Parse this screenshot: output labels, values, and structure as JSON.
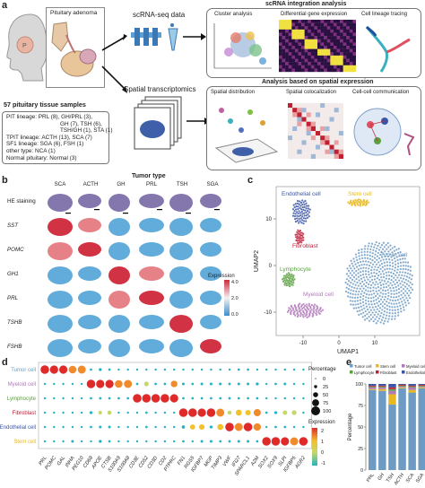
{
  "panels": {
    "a": "a",
    "b": "b",
    "c": "c",
    "d": "d",
    "e": "e"
  },
  "panel_a": {
    "pituitary_title": "Pituitary adenoma",
    "scrna_label": "scRNA-seq data",
    "spatial_label": "Spatial transcriptomics",
    "samples_title": "57 pituitary tissue samples",
    "samples_lines": [
      "PIT lineage: PRL (8), GH/PRL (3),",
      "GH (7), TSH (6),",
      "TSH/GH (1), STA (1)",
      "TPIT lineage: ACTH (13), SCA (7)",
      "SF1 lineage: SGA (6), FSH (1)",
      "other type: NCA (1)",
      "Normal pituitary: Normal (3)"
    ],
    "integration_title": "scRNA integration analysis",
    "cluster_label": "Cluster analysis",
    "deg_label": "Differential gene expression",
    "lineage_label": "Cell lineage tracing",
    "spatial_analysis_title": "Analysis based on spatial expression",
    "spatial_dist_label": "Spatial distribution",
    "spatial_coloc_label": "Spatial colocalization",
    "cell_comm_label": "Cell-cell communication"
  },
  "panel_b": {
    "title": "Tumor type",
    "columns": [
      "SCA",
      "ACTH",
      "GH",
      "PRL",
      "TSH",
      "SGA"
    ],
    "rows": [
      "HE staining",
      "SST",
      "POMC",
      "GH1",
      "PRL",
      "TSHB",
      "FSHB"
    ],
    "legend_title": "Expression",
    "legend_ticks": [
      "4.0",
      "2.0",
      "0.0"
    ]
  },
  "panel_c": {
    "xlabel": "UMAP1",
    "ylabel": "UMAP2",
    "xticks": [
      "-10",
      "0",
      "10"
    ],
    "yticks": [
      "10",
      "0",
      "-10"
    ],
    "clusters": [
      {
        "name": "Endothelial cell",
        "color": "#3b55a6"
      },
      {
        "name": "Stem cell",
        "color": "#e8b820"
      },
      {
        "name": "Fibroblast",
        "color": "#c0203a"
      },
      {
        "name": "Lymphocyte",
        "color": "#5aa040"
      },
      {
        "name": "Myeloid cell",
        "color": "#b07ab8"
      },
      {
        "name": "Tumor cell",
        "color": "#6d9bc3"
      }
    ]
  },
  "chart_data": [
    {
      "type": "scatter",
      "panel": "d",
      "description_kind": "dot plot",
      "rows": [
        "Tumor cell",
        "Myeloid cell",
        "Lymphocyte",
        "Fibroblast",
        "Endothelial cell",
        "Stem cell"
      ],
      "row_colors": [
        "#6d9bc3",
        "#b07ab8",
        "#5aa040",
        "#c0203a",
        "#3b55a6",
        "#e8b820"
      ],
      "genes": [
        "PRL",
        "POMC",
        "GAL",
        "INHA",
        "PEG10",
        "CD68",
        "APOE",
        "CTSB",
        "S100A9",
        "S100A8",
        "CD3E",
        "CD52",
        "CD3D",
        "CD2",
        "PTPRC",
        "FN1",
        "RGS5",
        "IGFBP7",
        "MGP",
        "TIMP3",
        "VWF",
        "IFI27",
        "SPARCL1",
        "A2M",
        "SOX2",
        "SOX9",
        "SLPI",
        "IGFBP5",
        "AGR2"
      ],
      "size_legend_title": "Percentage",
      "size_legend_values": [
        0,
        25,
        50,
        75,
        100
      ],
      "color_legend_title": "Expression",
      "color_legend_ticks": [
        "2",
        "1",
        "0",
        "-1"
      ],
      "values": [
        [
          1.8,
          1.6,
          1.6,
          1.4,
          1.5,
          -0.5,
          -0.3,
          -0.5,
          -0.6,
          -0.6,
          -0.6,
          -0.6,
          -0.6,
          -0.6,
          -0.6,
          -0.6,
          -0.6,
          -0.6,
          -0.6,
          -0.6,
          -0.6,
          -0.5,
          -0.5,
          -0.6,
          -0.6,
          -0.6,
          -0.6,
          -0.6,
          -0.6
        ],
        [
          -0.6,
          -0.6,
          -0.6,
          -0.6,
          -0.6,
          1.9,
          1.6,
          1.6,
          1.4,
          1.5,
          -0.5,
          0.3,
          -0.5,
          -0.5,
          1.0,
          -0.4,
          -0.5,
          -0.4,
          -0.4,
          -0.4,
          -0.5,
          -0.4,
          -0.4,
          -0.3,
          -0.6,
          -0.5,
          -0.4,
          -0.6,
          -0.6
        ],
        [
          -0.6,
          -0.6,
          -0.6,
          -0.6,
          -0.6,
          -0.5,
          -0.5,
          -0.5,
          -0.5,
          -0.5,
          1.9,
          1.8,
          1.9,
          1.8,
          1.6,
          -0.5,
          -0.5,
          -0.5,
          -0.5,
          -0.5,
          -0.5,
          -0.5,
          -0.5,
          -0.5,
          -0.6,
          -0.6,
          -0.6,
          -0.6,
          -0.6
        ],
        [
          -0.6,
          -0.6,
          -0.6,
          -0.6,
          -0.6,
          -0.3,
          -0.1,
          0.1,
          -0.6,
          -0.6,
          -0.6,
          -0.5,
          -0.6,
          -0.6,
          -0.6,
          1.9,
          1.7,
          1.6,
          1.9,
          1.5,
          0.1,
          0.8,
          0.6,
          1.2,
          -0.5,
          -0.3,
          0.2,
          0.3,
          -0.6
        ],
        [
          -0.6,
          -0.6,
          -0.6,
          -0.6,
          -0.6,
          -0.5,
          -0.4,
          -0.4,
          -0.6,
          -0.6,
          -0.6,
          -0.5,
          -0.6,
          -0.6,
          -0.6,
          -0.2,
          0.5,
          0.6,
          -0.3,
          0.8,
          1.9,
          1.5,
          1.8,
          1.3,
          -0.6,
          -0.5,
          -0.5,
          -0.6,
          -0.6
        ],
        [
          -0.6,
          -0.6,
          -0.6,
          -0.4,
          -0.6,
          -0.6,
          -0.3,
          -0.5,
          -0.6,
          -0.6,
          -0.6,
          -0.6,
          -0.6,
          -0.6,
          -0.6,
          -0.5,
          -0.6,
          -0.4,
          -0.4,
          -0.5,
          -0.5,
          -0.4,
          -0.4,
          -0.5,
          1.9,
          1.8,
          1.6,
          1.5,
          1.9
        ]
      ]
    },
    {
      "type": "bar",
      "panel": "e",
      "stacked": true,
      "categories": [
        "PRL",
        "GH",
        "TSH",
        "ACTH",
        "SCA",
        "SGA"
      ],
      "ylabel": "Percentage",
      "ylim": [
        0,
        100
      ],
      "yticks": [
        "0",
        "25",
        "50",
        "75",
        "100"
      ],
      "series": [
        {
          "name": "Tumor cell",
          "color": "#6d9bc3",
          "values": [
            93,
            92,
            76,
            95,
            90,
            95
          ]
        },
        {
          "name": "Stem cell",
          "color": "#e8b820",
          "values": [
            1,
            2,
            12,
            1,
            3,
            1
          ]
        },
        {
          "name": "Myeloid cell",
          "color": "#b07ab8",
          "values": [
            2,
            2,
            4,
            1,
            3,
            1
          ]
        },
        {
          "name": "Lymphocyte",
          "color": "#5aa040",
          "values": [
            1,
            1,
            2,
            1,
            1,
            1
          ]
        },
        {
          "name": "Fibroblast",
          "color": "#c0203a",
          "values": [
            1,
            1,
            2,
            1,
            1,
            1
          ]
        },
        {
          "name": "Endothelial cell",
          "color": "#3b55a6",
          "values": [
            2,
            2,
            4,
            1,
            2,
            1
          ]
        }
      ]
    }
  ]
}
